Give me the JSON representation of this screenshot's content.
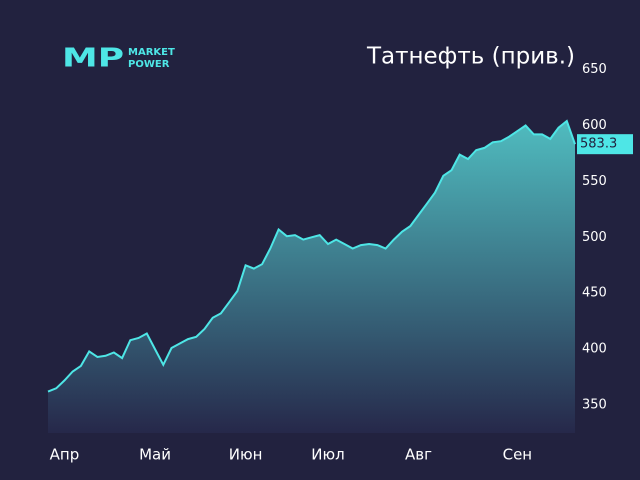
{
  "logo": {
    "mark": "MP",
    "lines": [
      "MARKET",
      "POWER"
    ]
  },
  "chart_data": {
    "type": "area",
    "title": "Татнефть (прив.)",
    "categories": [
      null,
      null,
      "Апр",
      null,
      null,
      null,
      null,
      null,
      null,
      null,
      null,
      null,
      null,
      "Май",
      null,
      null,
      null,
      null,
      null,
      null,
      null,
      null,
      null,
      null,
      "Июн",
      null,
      null,
      null,
      null,
      null,
      null,
      null,
      null,
      null,
      "Июл",
      null,
      null,
      null,
      null,
      null,
      null,
      null,
      null,
      null,
      null,
      "Авг",
      null,
      null,
      null,
      null,
      null,
      null,
      null,
      null,
      null,
      null,
      null,
      "Сен",
      null,
      null,
      null,
      null,
      null,
      null,
      null
    ],
    "series": [
      {
        "name": "Татнефть (прив.)",
        "color": "#4ee6e6",
        "values": [
          362,
          365,
          372,
          380,
          385,
          398,
          393,
          394,
          397,
          392,
          408,
          410,
          414,
          400,
          386,
          401,
          405,
          409,
          411,
          418,
          428,
          432,
          442,
          452,
          475,
          472,
          476,
          490,
          507,
          501,
          502,
          498,
          500,
          502,
          494,
          498,
          494,
          490,
          493,
          494,
          493,
          490,
          498,
          505,
          510,
          520,
          530,
          540,
          555,
          560,
          574,
          570,
          578,
          580,
          585,
          586,
          590,
          595,
          600,
          592,
          592,
          588,
          598,
          604,
          583.3
        ]
      }
    ],
    "ylim": [
      325,
      655
    ],
    "yticks": [
      350,
      400,
      450,
      500,
      550,
      600,
      650
    ],
    "grid": false
  }
}
